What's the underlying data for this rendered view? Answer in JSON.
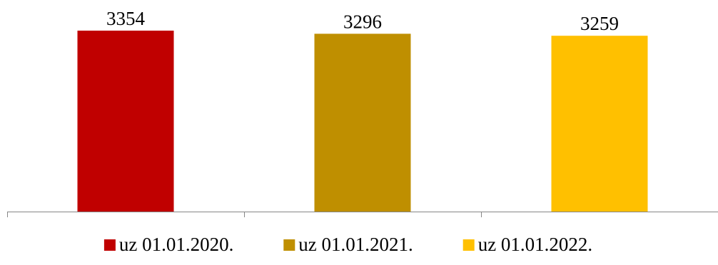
{
  "chart_data": {
    "type": "bar",
    "series": [
      {
        "name": "uz 01.01.2020.",
        "value": 3354,
        "color": "#c00000"
      },
      {
        "name": "uz 01.01.2021.",
        "value": 3296,
        "color": "#bf8f00"
      },
      {
        "name": "uz 01.01.2022.",
        "value": 3259,
        "color": "#ffc000"
      }
    ],
    "ylim": [
      0,
      3500
    ],
    "data_labels": [
      "3354",
      "3296",
      "3259"
    ],
    "grid": false,
    "legend_position": "bottom"
  }
}
